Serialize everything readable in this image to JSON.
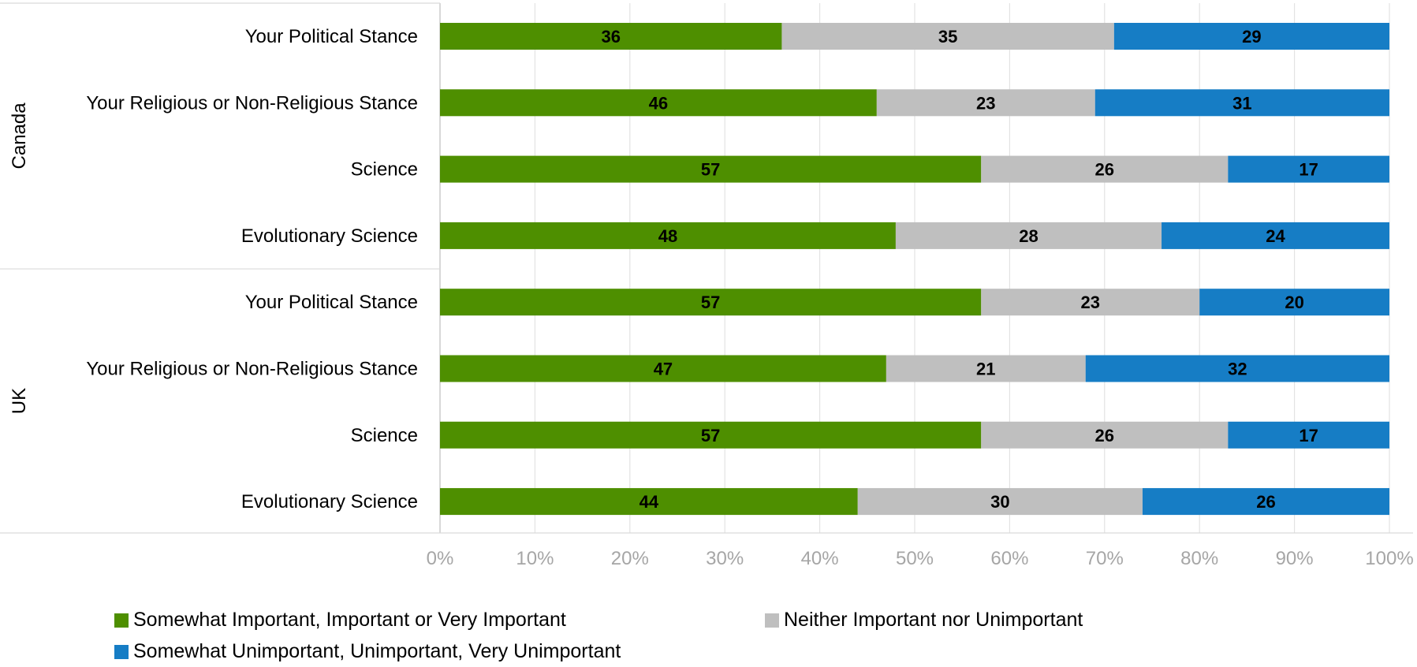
{
  "chart_data": {
    "type": "bar",
    "orientation": "horizontal",
    "stacked": "percent",
    "xlim": [
      0,
      100
    ],
    "x_ticks": [
      "0%",
      "10%",
      "20%",
      "30%",
      "40%",
      "50%",
      "60%",
      "70%",
      "80%",
      "90%",
      "100%"
    ],
    "grid": true,
    "legend_position": "bottom",
    "groups": [
      {
        "label": "Canada",
        "categories": [
          "Your Political Stance",
          "Your Religious or Non-Religious Stance",
          "Science",
          "Evolutionary Science"
        ]
      },
      {
        "label": "UK",
        "categories": [
          "Your Political Stance",
          "Your Religious or Non-Religious Stance",
          "Science",
          "Evolutionary Science"
        ]
      }
    ],
    "series": [
      {
        "name": "Somewhat Important, Important or Very Important",
        "color": "#4e8f00",
        "values": [
          36,
          46,
          57,
          48,
          57,
          47,
          57,
          44
        ]
      },
      {
        "name": "Neither Important nor Unimportant",
        "color": "#bfbfbf",
        "values": [
          35,
          23,
          26,
          28,
          23,
          21,
          26,
          30
        ]
      },
      {
        "name": "Somewhat Unimportant, Unimportant, Very Unimportant",
        "color": "#167dc5",
        "values": [
          29,
          31,
          17,
          24,
          20,
          32,
          17,
          26
        ]
      }
    ]
  }
}
